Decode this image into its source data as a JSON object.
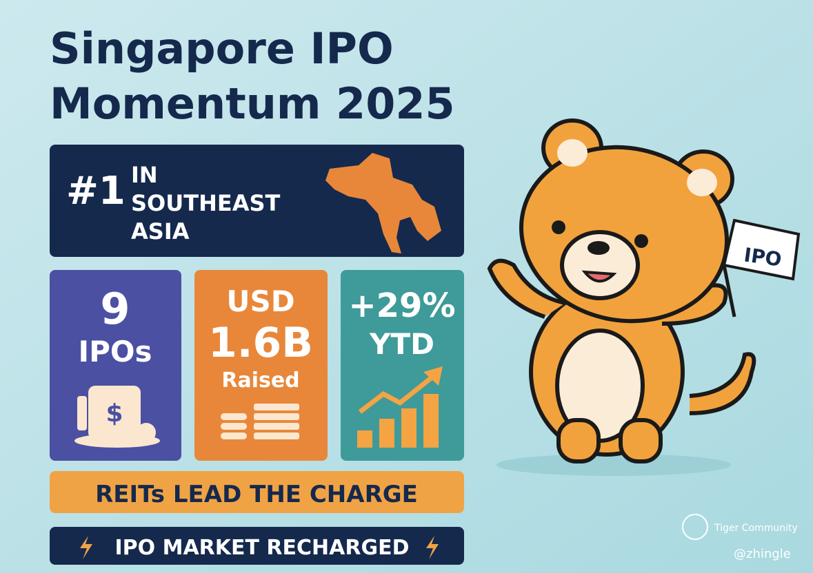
{
  "header": {
    "title_lines": [
      "Singapore IPO",
      "Momentum 2025"
    ]
  },
  "rank_box": {
    "rank": "#1",
    "lines": [
      "IN",
      "SOUTHEAST",
      "ASIA"
    ]
  },
  "cards": [
    {
      "lines": [
        "9",
        "IPOs"
      ]
    },
    {
      "lines": [
        "USD",
        "1.6B",
        "Raised"
      ]
    },
    {
      "lines": [
        "+29%",
        "YTD"
      ]
    }
  ],
  "banners": [
    "REITs LEAD THE CHARGE",
    "IPO MARKET RECHARGED"
  ],
  "flag": "IPO",
  "watermark": {
    "brand": "Tiger Community",
    "handle": "@zhingle"
  }
}
